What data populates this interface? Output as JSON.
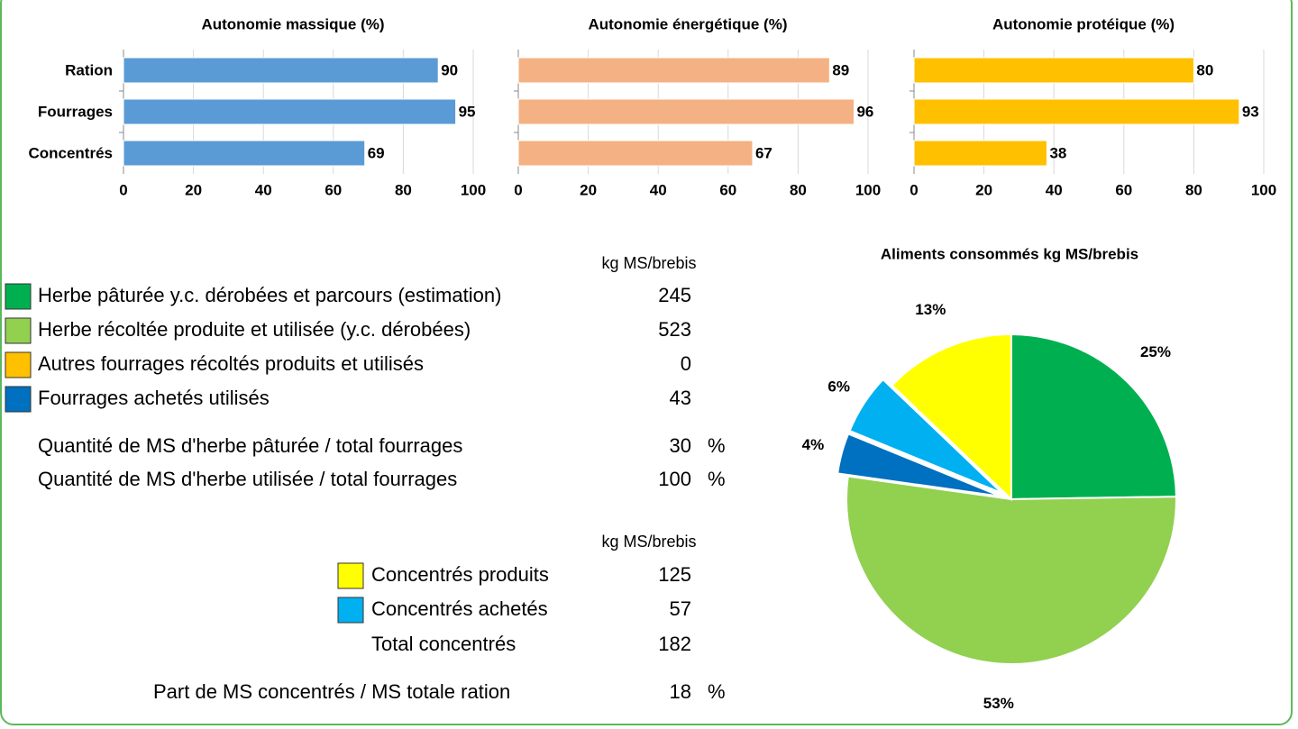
{
  "chart_data": [
    {
      "type": "bar",
      "title": "Autonomie massique (%)",
      "categories": [
        "Ration",
        "Fourrages",
        "Concentrés"
      ],
      "values": [
        90,
        95,
        69
      ],
      "color": "#5b9bd5",
      "xlim": [
        0,
        100
      ],
      "xticks": [
        0,
        20,
        40,
        60,
        80,
        100
      ],
      "grid": true
    },
    {
      "type": "bar",
      "title": "Autonomie énergétique (%)",
      "values": [
        89,
        96,
        67
      ],
      "color": "#f4b183",
      "xlim": [
        0,
        100
      ],
      "xticks": [
        0,
        20,
        40,
        60,
        80,
        100
      ],
      "grid": true
    },
    {
      "type": "bar",
      "title": "Autonomie protéique (%)",
      "values": [
        80,
        93,
        38
      ],
      "color": "#ffc000",
      "xlim": [
        0,
        100
      ],
      "xticks": [
        0,
        20,
        40,
        60,
        80,
        100
      ],
      "grid": true
    },
    {
      "type": "pie",
      "title": "Aliments consommés kg MS/brebis",
      "values": [
        25,
        53,
        4,
        6,
        13
      ],
      "value_labels": [
        "25%",
        "53%",
        "4%",
        "6%",
        "13%"
      ],
      "colors": [
        "#00b050",
        "#92d050",
        "#0070c0",
        "#00b0f0",
        "#ffff00"
      ],
      "explode": [
        false,
        false,
        true,
        true,
        false
      ]
    }
  ],
  "table": {
    "header1": "kg MS/brebis",
    "rows": [
      {
        "label": "Herbe pâturée y.c. dérobées et parcours (estimation)",
        "value": 245,
        "color": "#00b050"
      },
      {
        "label": "Herbe récoltée produite et utilisée (y.c. dérobées)",
        "value": 523,
        "color": "#92d050"
      },
      {
        "label": "Autres fourrages récoltés produits et utilisés",
        "value": 0,
        "color": "#ffc000"
      },
      {
        "label": "Fourrages achetés utilisés",
        "value": 43,
        "color": "#0070c0"
      }
    ],
    "ratios": [
      {
        "label": "Quantité de MS d'herbe pâturée / total fourrages",
        "value": 30,
        "unit": "%"
      },
      {
        "label": "Quantité de MS d'herbe utilisée / total fourrages",
        "value": 100,
        "unit": "%"
      }
    ],
    "header2": "kg MS/brebis",
    "concentrates": [
      {
        "label": "Concentrés produits",
        "value": 125,
        "color": "#ffff00"
      },
      {
        "label": "Concentrés achetés",
        "value": 57,
        "color": "#00b0f0"
      }
    ],
    "total": {
      "label": "Total concentrés",
      "value": 182
    },
    "share": {
      "label": "Part de MS concentrés / MS totale ration",
      "value": 18,
      "unit": "%"
    }
  }
}
